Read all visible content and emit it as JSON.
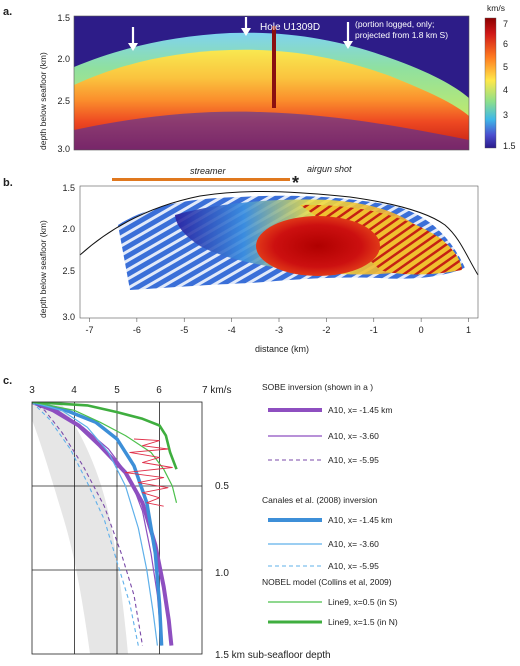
{
  "panels": {
    "a": {
      "label": "a."
    },
    "b": {
      "label": "b."
    },
    "c": {
      "label": "c."
    }
  },
  "panel_a": {
    "ylabel": "depth below seafloor (km)",
    "y_ticks": [
      "1.5",
      "2.0",
      "2.5",
      "3.0"
    ],
    "hole_label": "Hole U1309D",
    "note_line1": "(portion logged, only;",
    "note_line2": "projected from 1.8 km S)",
    "colorbar_unit": "km/s",
    "colorbar_ticks": [
      "7",
      "6",
      "5",
      "4",
      "3",
      "1.5"
    ]
  },
  "panel_b": {
    "ylabel": "depth below seafloor (km)",
    "xlabel": "distance (km)",
    "x_ticks": [
      "-7",
      "-6",
      "-5",
      "-4",
      "-3",
      "-2",
      "-1",
      "0",
      "1"
    ],
    "y_ticks": [
      "1.5",
      "2.0",
      "2.5",
      "3.0"
    ],
    "streamer_label": "streamer",
    "airgun_label": "airgun shot",
    "airgun_marker": "*"
  },
  "panel_c": {
    "x_ticks": [
      "3",
      "4",
      "5",
      "6"
    ],
    "x_unit_label": "7 km/s",
    "y_ticks": [
      "0.5",
      "1.0"
    ],
    "bottom_label": "1.5 km sub-seafloor depth",
    "legend": {
      "group1_title": "SOBE inversion (shown in a )",
      "group1_items": [
        "A10, x= -1.45 km",
        "A10, x= -3.60",
        "A10, x= -5.95"
      ],
      "group2_title": "Canales et al. (2008) inversion",
      "group2_items": [
        "A10, x= -1.45 km",
        "A10, x= -3.60",
        "A10, x= -5.95"
      ],
      "group3_title": "NOBEL model (Collins et al, 2009)",
      "group3_items": [
        "Line9, x=0.5 (in S)",
        "Line9, x=1.5 (in N)"
      ]
    }
  },
  "chart_data": [
    {
      "type": "heatmap",
      "panel": "a",
      "ylabel": "depth below seafloor (km)",
      "ylim": [
        3.0,
        1.5
      ],
      "colorbar": {
        "unit": "km/s",
        "range": [
          1.5,
          7
        ],
        "ticks": [
          7,
          6,
          5,
          4,
          3,
          1.5
        ]
      },
      "annotations": [
        "Hole U1309D",
        "(portion logged, only; projected from 1.8 km S)"
      ],
      "seafloor_depth_km": [
        2.13,
        1.85,
        1.66,
        1.6,
        1.65,
        1.8,
        2.05,
        2.38,
        2.75
      ]
    },
    {
      "type": "heatmap",
      "panel": "b",
      "xlabel": "distance (km)",
      "ylabel": "depth below seafloor (km)",
      "xlim": [
        -7,
        1.2
      ],
      "ylim": [
        3.0,
        1.5
      ],
      "annotations": [
        "streamer",
        "airgun shot"
      ],
      "streamer_extent_km": [
        -6.3,
        -3.0
      ],
      "seafloor_x": [
        -7,
        -6,
        -5,
        -4,
        -3,
        -2,
        -1,
        0,
        1.2
      ],
      "seafloor_depth_km": [
        2.27,
        2.0,
        1.85,
        1.77,
        1.75,
        1.78,
        1.87,
        2.1,
        2.42
      ]
    },
    {
      "type": "line",
      "panel": "c",
      "xlabel": "km/s",
      "ylabel": "sub-seafloor depth (km)",
      "xlim": [
        3,
        7
      ],
      "ylim": [
        1.5,
        0
      ],
      "series": [
        {
          "name": "SOBE A10, x= -1.45 km",
          "color": "#8e4fc0",
          "points": [
            [
              3.0,
              0
            ],
            [
              3.5,
              0.05
            ],
            [
              4.1,
              0.14
            ],
            [
              4.6,
              0.26
            ],
            [
              5.2,
              0.42
            ],
            [
              5.6,
              0.6
            ],
            [
              5.9,
              0.85
            ],
            [
              6.1,
              1.1
            ],
            [
              6.22,
              1.3
            ],
            [
              6.28,
              1.45
            ]
          ]
        },
        {
          "name": "SOBE A10, x= -3.60",
          "color": "#8e4fc0",
          "points": [
            [
              3.0,
              0
            ],
            [
              3.6,
              0.05
            ],
            [
              4.2,
              0.15
            ],
            [
              4.8,
              0.28
            ],
            [
              5.3,
              0.45
            ],
            [
              5.6,
              0.65
            ],
            [
              5.8,
              0.9
            ],
            [
              5.95,
              1.15
            ],
            [
              6.05,
              1.45
            ]
          ]
        },
        {
          "name": "SOBE A10, x= -5.95",
          "color": "#7a4aa8",
          "points": [
            [
              3.0,
              0
            ],
            [
              3.3,
              0.05
            ],
            [
              3.7,
              0.18
            ],
            [
              4.2,
              0.38
            ],
            [
              4.7,
              0.62
            ],
            [
              5.1,
              0.9
            ],
            [
              5.4,
              1.15
            ],
            [
              5.6,
              1.45
            ]
          ]
        },
        {
          "name": "Canales A10, x= -1.45 km",
          "color": "#3d8fd8",
          "points": [
            [
              3.0,
              0
            ],
            [
              3.8,
              0.05
            ],
            [
              4.5,
              0.12
            ],
            [
              5.0,
              0.22
            ],
            [
              5.4,
              0.38
            ],
            [
              5.7,
              0.6
            ],
            [
              5.9,
              0.9
            ],
            [
              6.0,
              1.2
            ],
            [
              6.05,
              1.45
            ]
          ]
        },
        {
          "name": "Canales A10, x= -3.60",
          "color": "#5fb0ea",
          "points": [
            [
              3.0,
              0
            ],
            [
              3.7,
              0.05
            ],
            [
              4.3,
              0.15
            ],
            [
              4.8,
              0.3
            ],
            [
              5.2,
              0.5
            ],
            [
              5.5,
              0.75
            ],
            [
              5.7,
              1.0
            ],
            [
              5.85,
              1.25
            ],
            [
              5.95,
              1.45
            ]
          ]
        },
        {
          "name": "Canales A10, x= -5.95",
          "color": "#5fb0ea",
          "points": [
            [
              3.0,
              0
            ],
            [
              3.4,
              0.1
            ],
            [
              3.9,
              0.28
            ],
            [
              4.3,
              0.48
            ],
            [
              4.7,
              0.7
            ],
            [
              5.0,
              0.95
            ],
            [
              5.3,
              1.2
            ],
            [
              5.5,
              1.45
            ]
          ]
        },
        {
          "name": "NOBEL Line9, x=0.5 (in S)",
          "color": "#4cc04c",
          "points": [
            [
              3.0,
              0
            ],
            [
              4.0,
              0.05
            ],
            [
              4.6,
              0.12
            ],
            [
              5.2,
              0.2
            ],
            [
              5.8,
              0.3
            ],
            [
              6.1,
              0.4
            ],
            [
              6.3,
              0.5
            ],
            [
              6.4,
              0.6
            ]
          ]
        },
        {
          "name": "NOBEL Line9, x=1.5 (in N)",
          "color": "#3fae3f",
          "points": [
            [
              3.0,
              0
            ],
            [
              4.3,
              0.02
            ],
            [
              5.0,
              0.06
            ],
            [
              5.6,
              0.1
            ],
            [
              6.0,
              0.14
            ],
            [
              6.15,
              0.2
            ],
            [
              6.25,
              0.3
            ],
            [
              6.4,
              0.4
            ]
          ]
        },
        {
          "name": "log",
          "color": "#e0304a",
          "points": [
            [
              5.4,
              0.22
            ],
            [
              6.0,
              0.23
            ],
            [
              5.6,
              0.26
            ],
            [
              6.2,
              0.28
            ],
            [
              5.3,
              0.3
            ],
            [
              6.0,
              0.33
            ],
            [
              5.6,
              0.36
            ],
            [
              6.3,
              0.39
            ],
            [
              5.2,
              0.42
            ],
            [
              6.1,
              0.45
            ],
            [
              5.5,
              0.48
            ],
            [
              6.2,
              0.51
            ],
            [
              5.6,
              0.54
            ],
            [
              6.0,
              0.57
            ],
            [
              5.7,
              0.6
            ],
            [
              6.1,
              0.62
            ]
          ]
        }
      ]
    }
  ]
}
